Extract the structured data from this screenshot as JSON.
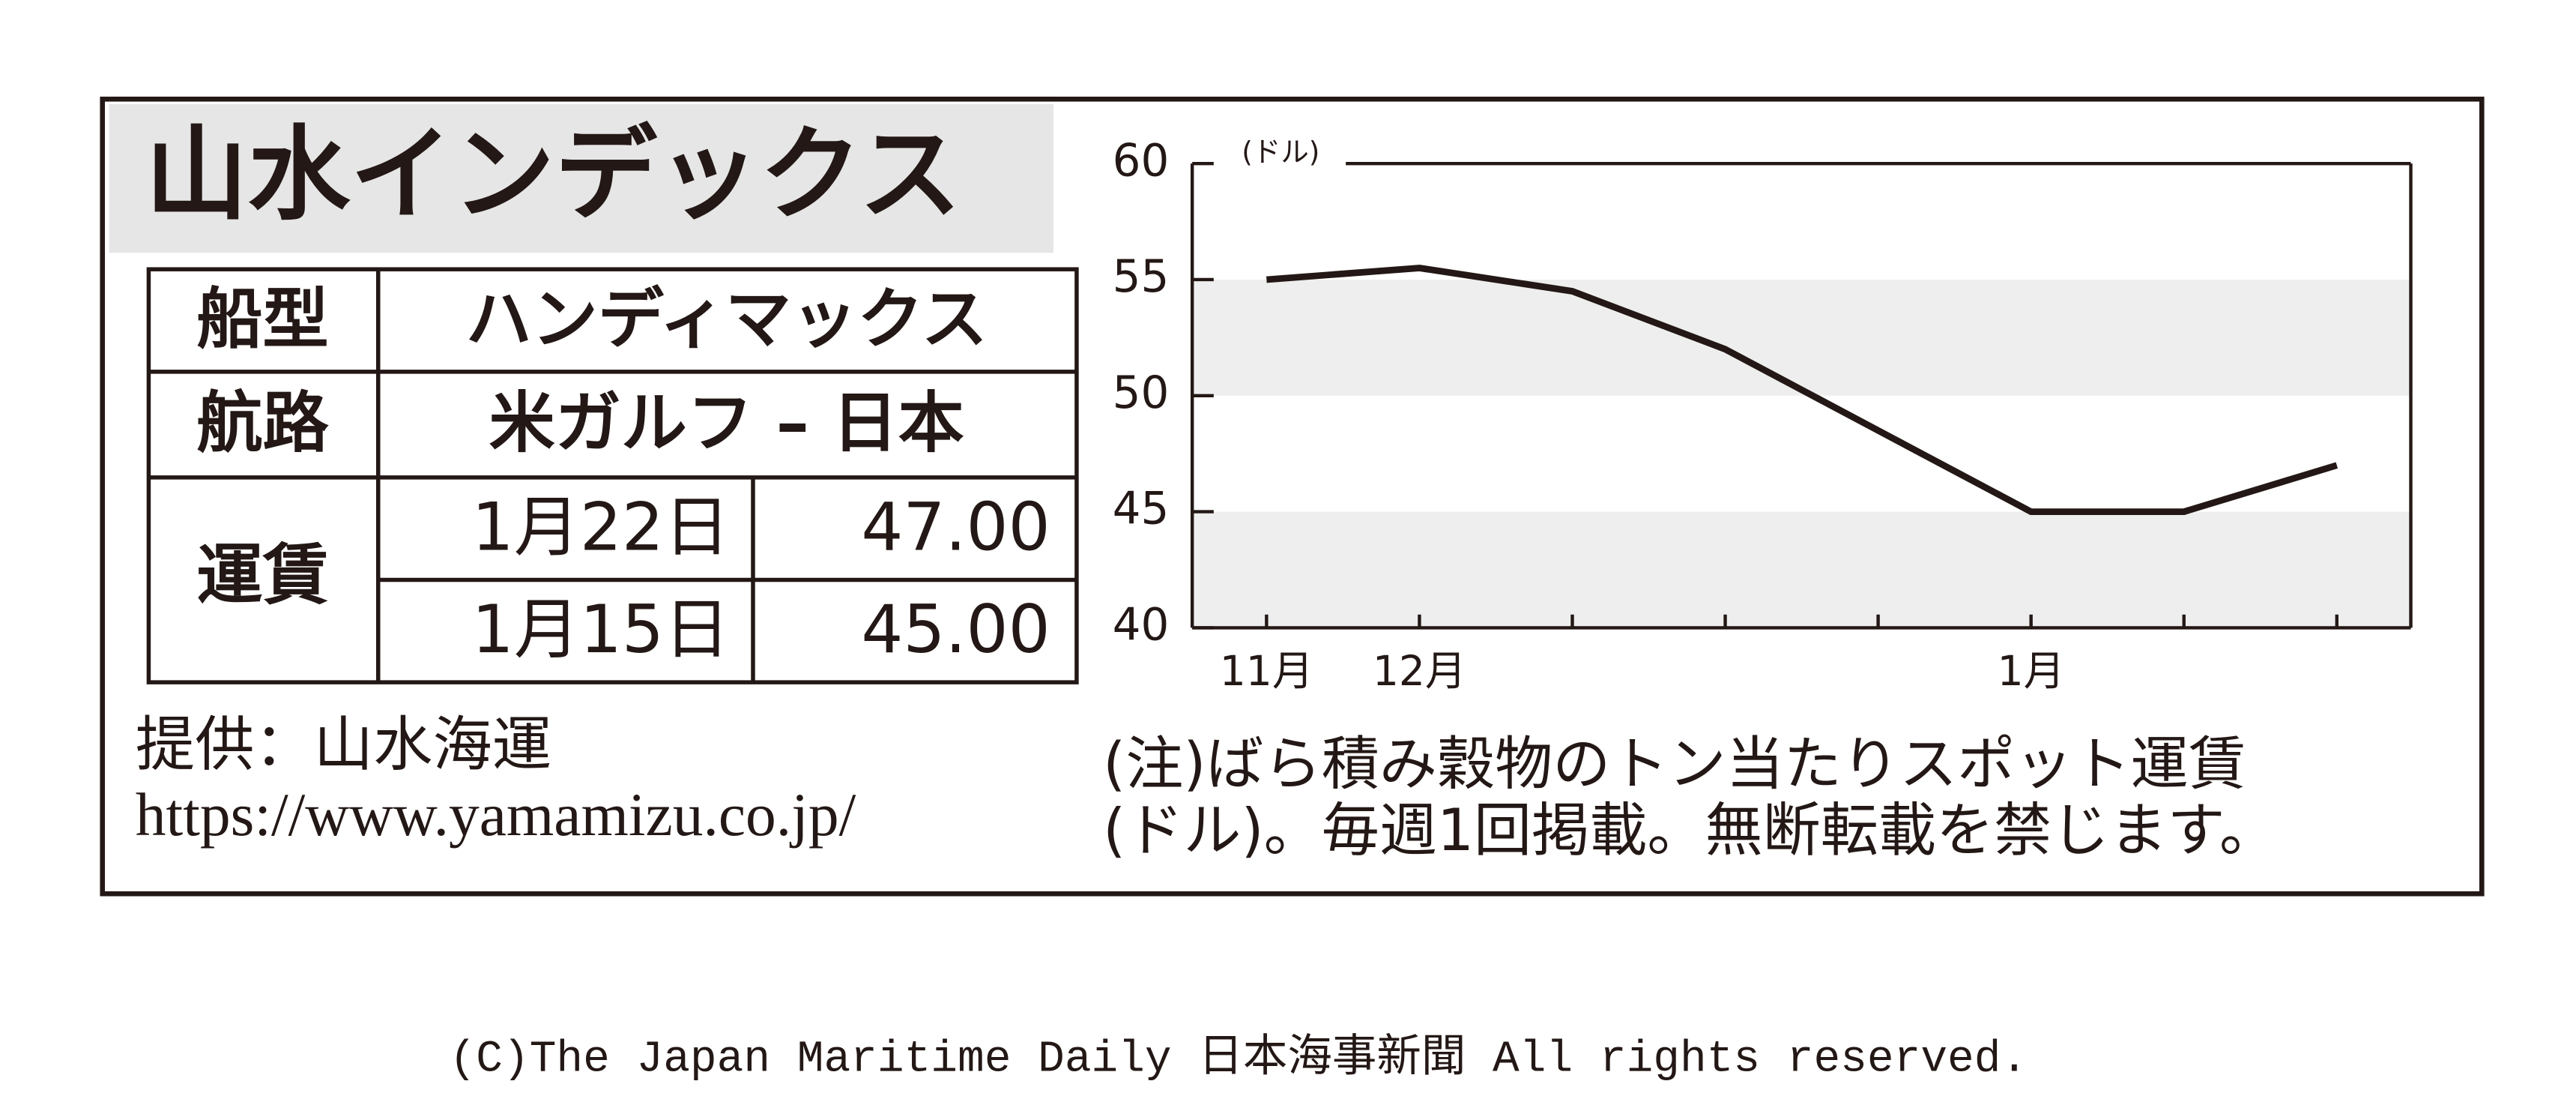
{
  "header": {
    "title": "山水インデックス"
  },
  "table": {
    "rows": [
      [
        "船型",
        "ハンディマックス"
      ],
      [
        "航路",
        "米ガルフ – 日本"
      ],
      [
        "運賃",
        "1月22日",
        "47.00"
      ],
      [
        "1月15日",
        "45.00"
      ]
    ]
  },
  "source": {
    "provider": "提供：山水海運",
    "url": "https://www.yamamizu.co.jp/"
  },
  "note": {
    "lines": [
      "(注)ばら積み穀物のトン当たりスポット運賃",
      "(ドル)。毎週1回掲載。無断転載を禁じます。"
    ]
  },
  "copyright": "(C)The Japan Maritime Daily 日本海事新聞 All rights reserved.",
  "chart_data": {
    "type": "line",
    "unit_label": "(ドル)",
    "categories": [
      "11月",
      "12月",
      null,
      null,
      null,
      "1月",
      null,
      null
    ],
    "values": [
      55,
      55.5,
      54.5,
      52,
      48.5,
      45,
      45,
      47
    ],
    "color": "#231815",
    "ylim": [
      40,
      60
    ],
    "yticks": [
      40,
      45,
      50,
      55,
      60
    ],
    "grid": true
  }
}
